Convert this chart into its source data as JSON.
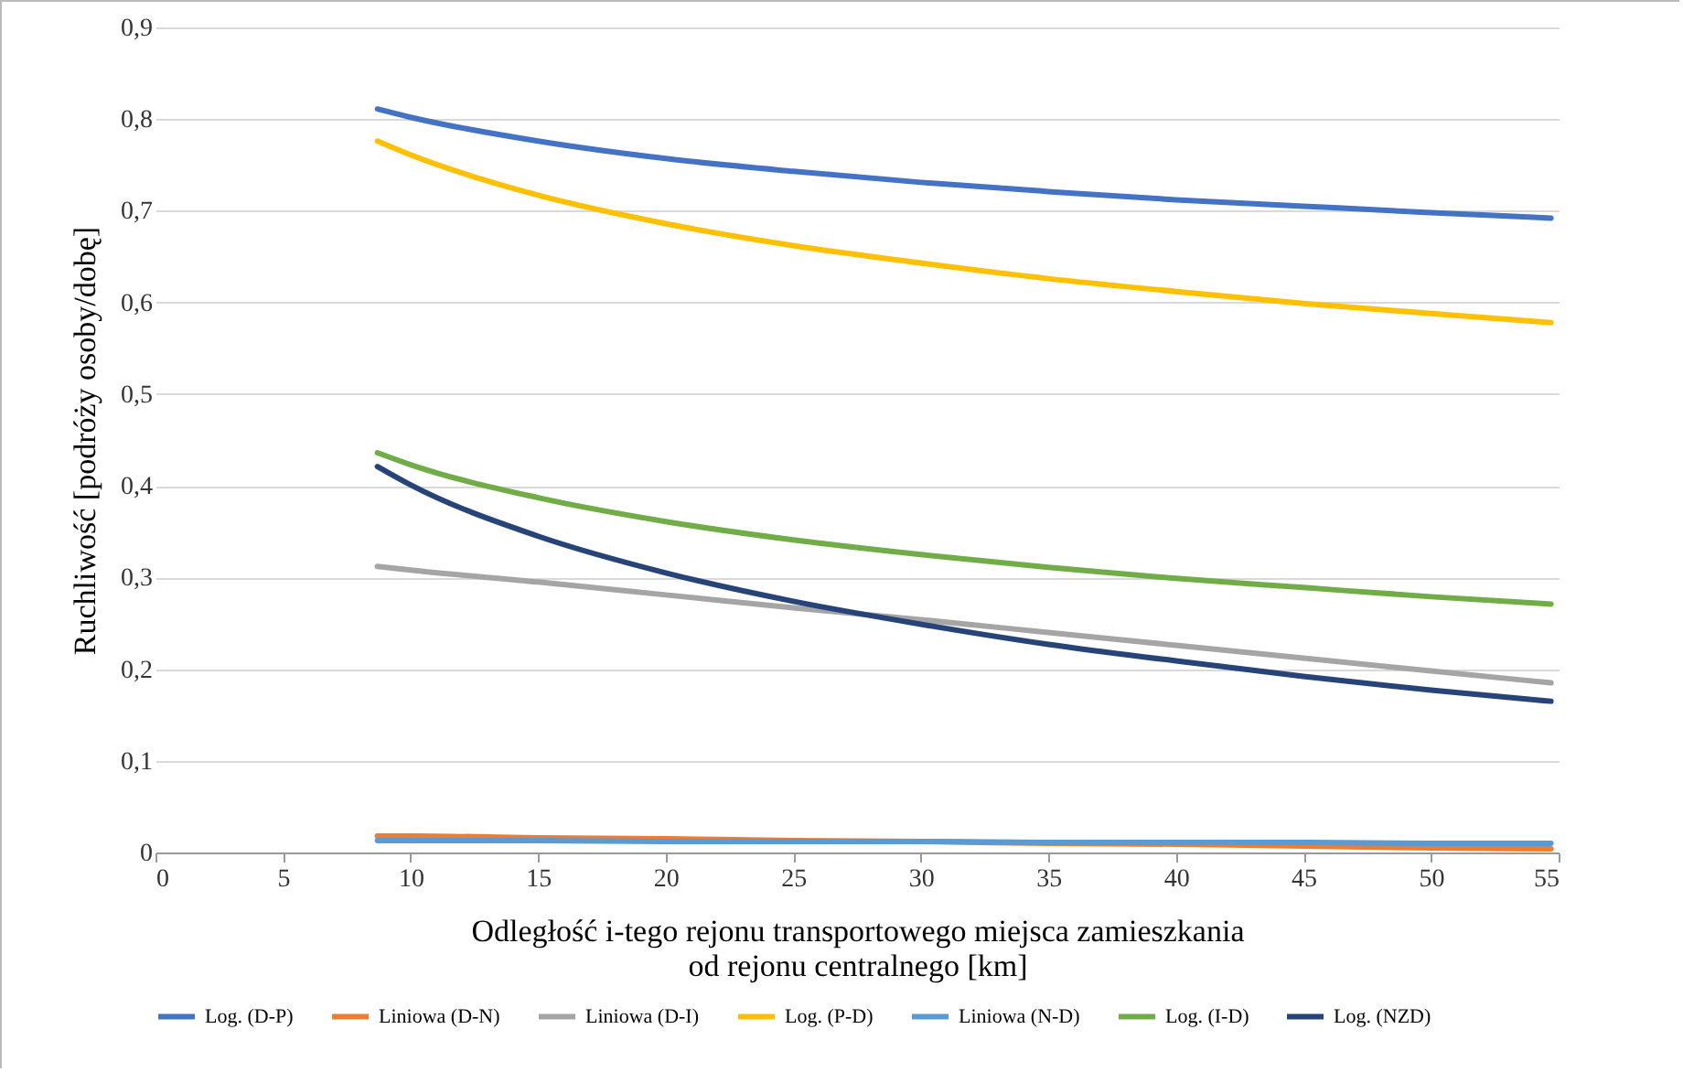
{
  "chart_data": {
    "type": "line",
    "xlabel": "Odległość i-tego rejonu transportowego miejsca zamieszkania\nod rejonu centralnego [km]",
    "ylabel": "Ruchliwość  [podróży osoby/dobę]",
    "xlim": [
      0,
      55
    ],
    "xticks": [
      0,
      5,
      10,
      15,
      20,
      25,
      30,
      35,
      40,
      45,
      50,
      55
    ],
    "ylim": [
      0,
      0.9
    ],
    "yticks": [
      {
        "value": 0,
        "label": "0"
      },
      {
        "value": 0.1,
        "label": "0,1"
      },
      {
        "value": 0.2,
        "label": "0,2"
      },
      {
        "value": 0.3,
        "label": "0,3"
      },
      {
        "value": 0.4,
        "label": "0,4"
      },
      {
        "value": 0.5,
        "label": "0,5"
      },
      {
        "value": 0.6,
        "label": "0,6"
      },
      {
        "value": 0.7,
        "label": "0,7"
      },
      {
        "value": 0.8,
        "label": "0,8"
      },
      {
        "value": 0.9,
        "label": "0,9"
      }
    ],
    "grid": "y",
    "legend": "bottom",
    "marker": "none",
    "line_style": "solid",
    "x": [
      8.7,
      10,
      15,
      20,
      25,
      30,
      35,
      40,
      45,
      50,
      54.7
    ],
    "series": [
      {
        "name": "Log. (D-P)",
        "color": "#4472c4",
        "values": [
          0.811,
          0.802,
          0.776,
          0.757,
          0.743,
          0.731,
          0.721,
          0.712,
          0.705,
          0.698,
          0.692
        ]
      },
      {
        "name": "Liniowa (D-N)",
        "color": "#ed7d31",
        "values": [
          0.018,
          0.018,
          0.016,
          0.015,
          0.013,
          0.012,
          0.01,
          0.009,
          0.007,
          0.005,
          0.004
        ]
      },
      {
        "name": "Liniowa (D-I)",
        "color": "#a5a5a5",
        "values": [
          0.312,
          0.308,
          0.295,
          0.281,
          0.267,
          0.254,
          0.24,
          0.226,
          0.212,
          0.198,
          0.185
        ]
      },
      {
        "name": "Log. (P-D)",
        "color": "#ffc000",
        "values": [
          0.776,
          0.761,
          0.717,
          0.686,
          0.662,
          0.643,
          0.626,
          0.612,
          0.599,
          0.588,
          0.578
        ]
      },
      {
        "name": "Liniowa (N-D)",
        "color": "#5b9bd5",
        "values": [
          0.013,
          0.013,
          0.013,
          0.012,
          0.012,
          0.012,
          0.011,
          0.011,
          0.011,
          0.01,
          0.01
        ]
      },
      {
        "name": "Log. (I-D)",
        "color": "#70ad47",
        "values": [
          0.436,
          0.423,
          0.387,
          0.361,
          0.341,
          0.325,
          0.311,
          0.299,
          0.289,
          0.279,
          0.271
        ]
      },
      {
        "name": "Log. (NZD)",
        "color": "#264478",
        "values": [
          0.421,
          0.401,
          0.345,
          0.305,
          0.274,
          0.249,
          0.227,
          0.209,
          0.192,
          0.177,
          0.165
        ]
      }
    ]
  }
}
